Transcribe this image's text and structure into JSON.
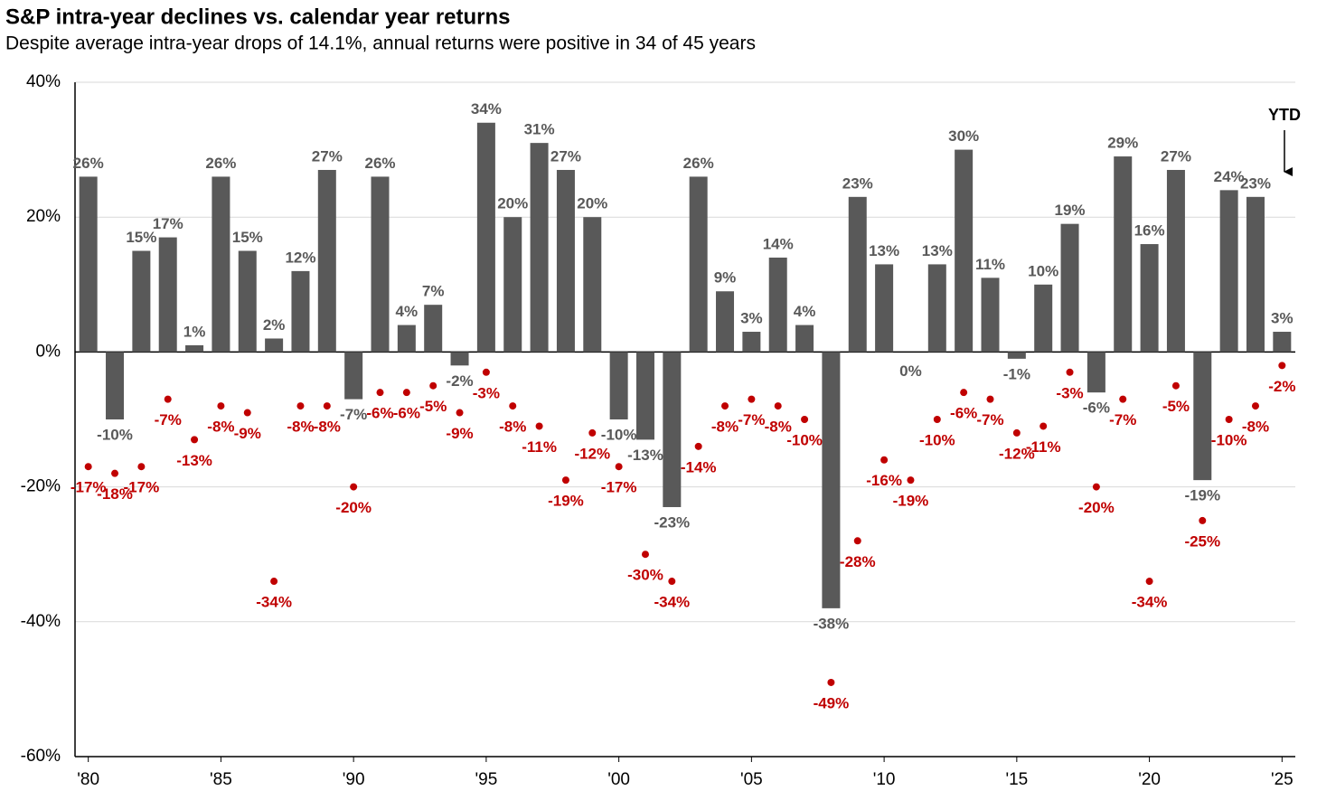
{
  "chart_data": {
    "type": "bar",
    "title": "S&P intra-year declines vs. calendar year returns",
    "subtitle": "Despite average intra-year drops of 14.1%, annual returns were positive in 34 of 45 years",
    "annotation": "YTD",
    "categories": [
      "'80",
      null,
      null,
      null,
      null,
      "'85",
      null,
      null,
      null,
      null,
      "'90",
      null,
      null,
      null,
      null,
      "'95",
      null,
      null,
      null,
      null,
      "'00",
      null,
      null,
      null,
      null,
      "'05",
      null,
      null,
      null,
      null,
      "'10",
      null,
      null,
      null,
      null,
      "'15",
      null,
      null,
      null,
      null,
      "'20",
      null,
      null,
      null,
      null,
      "'25"
    ],
    "series": [
      {
        "type": "bar",
        "color": "#595959",
        "label_color": "#595959",
        "values": [
          26,
          -10,
          15,
          17,
          1,
          26,
          15,
          2,
          12,
          27,
          -7,
          26,
          4,
          7,
          -2,
          34,
          20,
          31,
          27,
          20,
          -10,
          -13,
          -23,
          26,
          9,
          3,
          14,
          4,
          -38,
          23,
          13,
          0,
          13,
          30,
          11,
          -1,
          10,
          19,
          -6,
          29,
          16,
          27,
          -19,
          24,
          23,
          3
        ],
        "value_labels": [
          "26%",
          "-10%",
          "15%",
          "17%",
          "1%",
          "26%",
          "15%",
          "2%",
          "12%",
          "27%",
          "-7%",
          "26%",
          "4%",
          "7%",
          "-2%",
          "34%",
          "20%",
          "31%",
          "27%",
          "20%",
          "-10%",
          "-13%",
          "-23%",
          "26%",
          "9%",
          "3%",
          "14%",
          "4%",
          "-38%",
          "23%",
          "13%",
          "0%",
          "13%",
          "30%",
          "11%",
          "-1%",
          "10%",
          "19%",
          "-6%",
          "29%",
          "16%",
          "27%",
          "-19%",
          "24%",
          "23%",
          "3%"
        ]
      },
      {
        "type": "scatter",
        "color": "#c00000",
        "label_color": "#c00000",
        "values": [
          -17,
          -18,
          -17,
          -7,
          -13,
          -8,
          -9,
          -34,
          -8,
          -8,
          -20,
          -6,
          -6,
          -5,
          -9,
          -3,
          -8,
          -11,
          -19,
          -12,
          -17,
          -30,
          -34,
          -14,
          -8,
          -7,
          -8,
          -10,
          -49,
          -28,
          -16,
          -19,
          -10,
          -6,
          -7,
          -12,
          -11,
          -3,
          -20,
          -7,
          -34,
          -5,
          -25,
          -10,
          -8,
          -2
        ],
        "value_labels": [
          "-17%",
          "-18%",
          "-17%",
          "-7%",
          "-13%",
          "-8%",
          "-9%",
          "-34%",
          "-8%",
          "-8%",
          "-20%",
          "-6%",
          "-6%",
          "-5%",
          "-9%",
          "-3%",
          "-8%",
          "-11%",
          "-19%",
          "-12%",
          "-17%",
          "-30%",
          "-34%",
          "-14%",
          "-8%",
          "-7%",
          "-8%",
          "-10%",
          "-49%",
          "-28%",
          "-16%",
          "-19%",
          "-10%",
          "-6%",
          "-7%",
          "-12%",
          "-11%",
          "-3%",
          "-20%",
          "-7%",
          "-34%",
          "-5%",
          "-25%",
          "-10%",
          "-8%",
          "-2%"
        ]
      }
    ],
    "ylim": [
      -60,
      40
    ],
    "yticks": [
      {
        "value": -60,
        "label": "-60%"
      },
      {
        "value": -40,
        "label": "-40%"
      },
      {
        "value": -20,
        "label": "-20%"
      },
      {
        "value": 0,
        "label": "0%"
      },
      {
        "value": 20,
        "label": "20%"
      },
      {
        "value": 40,
        "label": "40%"
      }
    ],
    "grid": true
  }
}
